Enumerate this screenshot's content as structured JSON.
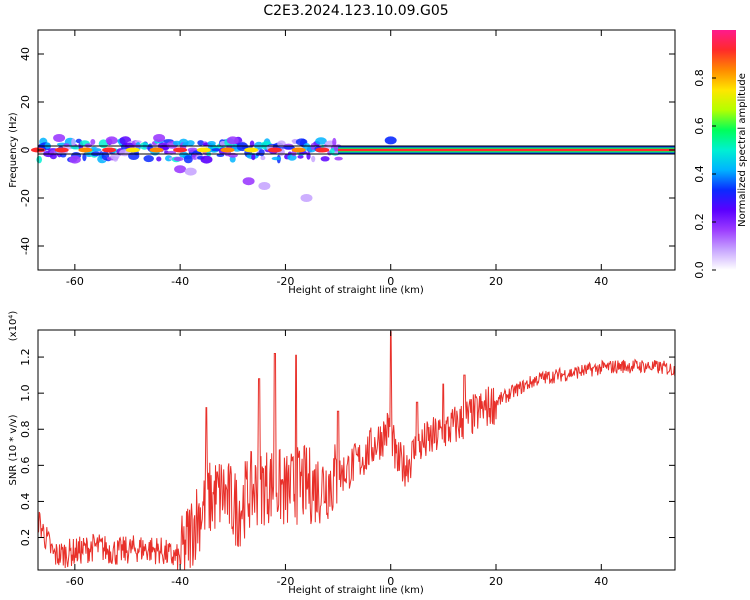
{
  "title": "C2E3.2024.123.10.09.G05",
  "colors": {
    "snr_line": "#e8302a",
    "spectrogram_cmap": [
      "#ffffff",
      "#c8a6ff",
      "#9c3cff",
      "#5a00ff",
      "#0a2aff",
      "#00b4ff",
      "#00f0d2",
      "#00ff5a",
      "#b4ff00",
      "#ffe600",
      "#ff8a00",
      "#ff2a2a",
      "#ff1a8c"
    ]
  },
  "chart_data": [
    {
      "type": "heatmap",
      "xlabel": "Height of straight line (km)",
      "ylabel": "Frequency (Hz)",
      "xlim": [
        -67,
        54
      ],
      "ylim": [
        -50,
        50
      ],
      "xticks": [
        "-60",
        "-40",
        "-20",
        "0",
        "20",
        "40"
      ],
      "yticks": [
        "40",
        "20",
        "0",
        "-20",
        "-40"
      ],
      "colorbar": {
        "label": "Normalized spectral amplitude",
        "range": [
          0,
          1
        ],
        "ticks": [
          "0.0",
          "0.2",
          "0.4",
          "0.6",
          "0.8"
        ]
      },
      "summary": {
        "carrier_frequency_hz": 0,
        "steady_carrier_from_km": -10,
        "steady_carrier_to_km": 54,
        "scintillation_region_km": [
          -67,
          -10
        ],
        "blobs": [
          {
            "x": -27,
            "y": -13,
            "amp": 0.15
          },
          {
            "x": -24,
            "y": -15,
            "amp": 0.12
          },
          {
            "x": -16,
            "y": -20,
            "amp": 0.1
          },
          {
            "x": -40,
            "y": -8,
            "amp": 0.15
          },
          {
            "x": -38,
            "y": -9,
            "amp": 0.12
          },
          {
            "x": -63,
            "y": 5,
            "amp": 0.2
          },
          {
            "x": -60,
            "y": -4,
            "amp": 0.18
          },
          {
            "x": -53,
            "y": 4,
            "amp": 0.18
          },
          {
            "x": -44,
            "y": 5,
            "amp": 0.2
          },
          {
            "x": -35,
            "y": -4,
            "amp": 0.25
          },
          {
            "x": -30,
            "y": 4,
            "amp": 0.15
          },
          {
            "x": 0,
            "y": 4,
            "amp": 0.35
          }
        ]
      }
    },
    {
      "type": "line",
      "xlabel": "Height of straight line (km)",
      "ylabel": "SNR (10 * v/v)",
      "y_multiplier": "(x10⁴)",
      "xlim": [
        -67,
        54
      ],
      "ylim": [
        0.02,
        1.35
      ],
      "xticks": [
        "-60",
        "-40",
        "-20",
        "0",
        "20",
        "40"
      ],
      "yticks": [
        "0.2",
        "0.4",
        "0.6",
        "0.8",
        "1.0",
        "1.2"
      ],
      "series": [
        {
          "x": [
            -67,
            -64,
            -60,
            -56,
            -52,
            -48,
            -44,
            -42,
            -40,
            -37,
            -35,
            -32,
            -29,
            -27,
            -25,
            -22,
            -20,
            -17,
            -14,
            -11,
            -8,
            -5,
            -3,
            -1,
            0,
            1,
            3,
            5,
            8,
            11,
            14,
            17,
            20,
            24,
            28,
            32,
            36,
            40,
            44,
            48,
            52,
            54
          ],
          "values": [
            0.3,
            0.1,
            0.12,
            0.15,
            0.12,
            0.14,
            0.13,
            0.1,
            0.08,
            0.3,
            0.4,
            0.45,
            0.35,
            0.45,
            0.48,
            0.5,
            0.45,
            0.5,
            0.48,
            0.52,
            0.58,
            0.65,
            0.72,
            0.78,
            0.82,
            0.62,
            0.6,
            0.7,
            0.75,
            0.8,
            0.85,
            0.9,
            0.95,
            1.02,
            1.08,
            1.1,
            1.12,
            1.14,
            1.15,
            1.15,
            1.14,
            1.13
          ]
        }
      ],
      "spikes": [
        {
          "x": -35,
          "y": 0.92
        },
        {
          "x": -25,
          "y": 1.08
        },
        {
          "x": -22,
          "y": 1.22
        },
        {
          "x": -18,
          "y": 1.21
        },
        {
          "x": -10,
          "y": 0.9
        },
        {
          "x": 0,
          "y": 1.34
        },
        {
          "x": 5,
          "y": 0.95
        },
        {
          "x": 10,
          "y": 1.05
        },
        {
          "x": 14,
          "y": 1.1
        }
      ]
    }
  ]
}
